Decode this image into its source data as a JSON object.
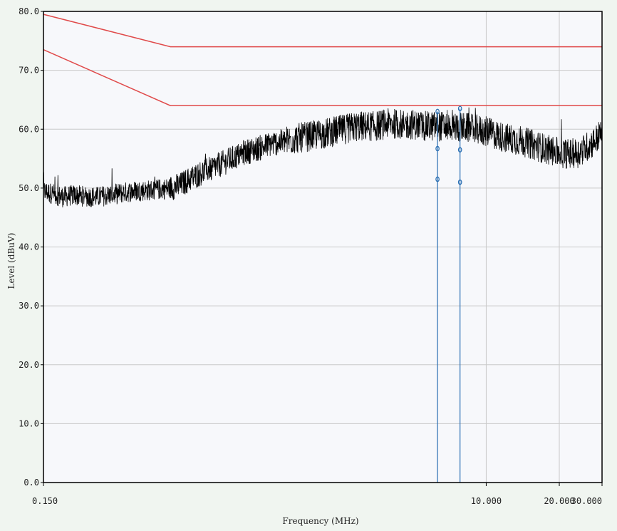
{
  "chart_data": {
    "type": "line",
    "title": "",
    "xlabel": "Frequency (MHz)",
    "ylabel": "Level (dBuV)",
    "xscale": "log",
    "xlim": [
      0.15,
      30
    ],
    "ylim": [
      0,
      80
    ],
    "grid": true,
    "legend": "none",
    "x_ticks": [
      {
        "value": 0.15,
        "label": "0.150"
      },
      {
        "value": 10,
        "label": "10.000"
      },
      {
        "value": 20,
        "label": "20.000"
      },
      {
        "value": 30,
        "label": "30.000"
      }
    ],
    "y_ticks": [
      {
        "value": 0,
        "label": "0.0"
      },
      {
        "value": 10,
        "label": "10.0"
      },
      {
        "value": 20,
        "label": "20.0"
      },
      {
        "value": 30,
        "label": "30.0"
      },
      {
        "value": 40,
        "label": "40.0"
      },
      {
        "value": 50,
        "label": "50.0"
      },
      {
        "value": 60,
        "label": "60.0"
      },
      {
        "value": 70,
        "label": "70.0"
      },
      {
        "value": 80,
        "label": "80.0"
      }
    ],
    "limit_lines": [
      {
        "color": "#e04a4a",
        "x": [
          0.15,
          0.5,
          30
        ],
        "y": [
          79.5,
          74,
          74
        ]
      },
      {
        "color": "#e04a4a",
        "x": [
          0.15,
          0.5,
          30
        ],
        "y": [
          73.5,
          64,
          64
        ]
      }
    ],
    "trace": {
      "color": "#000000",
      "x": [
        0.15,
        0.165,
        0.18,
        0.2,
        0.22,
        0.25,
        0.28,
        0.3,
        0.33,
        0.36,
        0.4,
        0.45,
        0.5,
        0.55,
        0.6,
        0.7,
        0.8,
        0.9,
        1.0,
        1.1,
        1.2,
        1.3,
        1.5,
        1.7,
        2.0,
        2.3,
        2.6,
        3.0,
        3.5,
        4.0,
        4.5,
        5.0,
        5.5,
        6.0,
        7.0,
        8.0,
        9.0,
        10.0,
        12.0,
        14.0,
        16.0,
        18.0,
        20.0,
        22.0,
        24.0,
        26.0,
        28.0,
        30.0
      ],
      "y": [
        49.5,
        49.0,
        48.5,
        48.8,
        48.6,
        48.5,
        48.8,
        49.0,
        49.3,
        49.5,
        49.6,
        49.8,
        50.0,
        50.5,
        51.5,
        53.0,
        54.0,
        55.0,
        56.0,
        56.5,
        57.0,
        57.5,
        58.0,
        58.5,
        59.0,
        59.5,
        60.0,
        60.5,
        60.5,
        61.0,
        60.8,
        60.8,
        60.5,
        60.5,
        60.5,
        60.3,
        60.0,
        59.6,
        58.5,
        58.0,
        57.2,
        56.5,
        56.0,
        55.8,
        56.0,
        57.0,
        58.0,
        59.5
      ]
    },
    "markers": [
      {
        "x": 6.3,
        "y_points": [
          63,
          56.7,
          51.5
        ],
        "color": "#2a6fb3"
      },
      {
        "x": 7.8,
        "y_points": [
          63.5,
          56.5,
          51.0
        ],
        "color": "#2a6fb3"
      }
    ],
    "colors": {
      "plot_background": "#f7f8fb",
      "grid": "#c9c9c9",
      "axis": "#000000",
      "limit": "#e04a4a",
      "marker": "#2a6fb3"
    }
  }
}
